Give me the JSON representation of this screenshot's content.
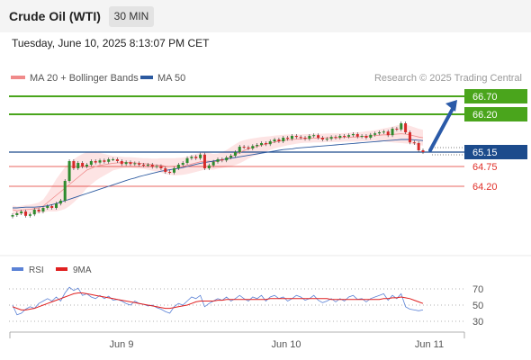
{
  "header": {
    "instrument": "Crude Oil (WTI)",
    "timeframe": "30 MIN"
  },
  "timestamp": "Tuesday, June 10, 2025 8:13:07 PM CET",
  "credit": "Research © 2025 Trading Central",
  "colors": {
    "resistance": "#4aa51c",
    "support": "#e0302a",
    "current": "#1c4b8c",
    "ma50": "#2c5aa0",
    "bollinger": "#f08a8a",
    "rsi": "#5b82d6",
    "rsi_ma": "#e02020",
    "arrow": "#2a5aa8",
    "candle_up": "#2e8b2e",
    "candle_down": "#d62a2a"
  },
  "chart_data": [
    {
      "type": "candlestick",
      "legend": [
        {
          "name": "MA 20 + Bollinger Bands",
          "color": "#f08a8a"
        },
        {
          "name": "MA 50",
          "color": "#2c5aa0"
        }
      ],
      "x_ticks": [
        "Jun 9",
        "Jun 10",
        "Jun 11"
      ],
      "y_range": [
        63.2,
        67.2
      ],
      "levels": [
        {
          "value": 66.7,
          "label": "66.70",
          "kind": "resistance"
        },
        {
          "value": 66.2,
          "label": "66.20",
          "kind": "resistance"
        },
        {
          "value": 65.15,
          "label": "65.15",
          "kind": "current"
        },
        {
          "value": 64.75,
          "label": "64.75",
          "kind": "support"
        },
        {
          "value": 64.2,
          "label": "64.20",
          "kind": "support"
        }
      ],
      "arrow": {
        "from": 65.2,
        "to": 66.6,
        "direction": "up"
      },
      "close": [
        63.4,
        63.45,
        63.5,
        63.38,
        63.42,
        63.55,
        63.5,
        63.6,
        63.65,
        63.6,
        63.72,
        63.8,
        64.35,
        64.9,
        64.7,
        64.85,
        64.75,
        64.8,
        64.9,
        64.86,
        64.92,
        64.88,
        64.95,
        64.95,
        64.9,
        64.82,
        64.87,
        64.82,
        64.84,
        64.8,
        64.78,
        64.8,
        64.74,
        64.76,
        64.7,
        64.6,
        64.58,
        64.7,
        64.8,
        64.85,
        64.98,
        65.02,
        64.98,
        65.08,
        64.7,
        64.78,
        64.88,
        64.95,
        64.92,
        65.0,
        65.05,
        65.15,
        65.3,
        65.28,
        65.25,
        65.32,
        65.35,
        65.4,
        65.37,
        65.45,
        65.5,
        65.45,
        65.55,
        65.52,
        65.6,
        65.57,
        65.55,
        65.52,
        65.6,
        65.62,
        65.55,
        65.5,
        65.52,
        65.57,
        65.55,
        65.6,
        65.58,
        65.62,
        65.65,
        65.58,
        65.6,
        65.55,
        65.63,
        65.67,
        65.7,
        65.72,
        65.62,
        65.8,
        65.78,
        65.95,
        65.7,
        65.42,
        65.4,
        65.2,
        65.15
      ],
      "ma20": [
        63.55,
        63.52,
        63.54,
        63.55,
        63.56,
        63.58,
        63.6,
        63.65,
        63.75,
        63.85,
        63.95,
        64.05,
        64.15,
        64.25,
        64.35,
        64.45,
        64.55,
        64.65,
        64.7,
        64.75,
        64.78,
        64.8,
        64.82,
        64.84,
        64.85,
        64.86,
        64.86,
        64.86,
        64.85,
        64.84,
        64.83,
        64.82,
        64.8,
        64.79,
        64.78,
        64.76,
        64.75,
        64.74,
        64.75,
        64.76,
        64.78,
        64.82,
        64.85,
        64.88,
        64.9,
        64.9,
        64.88,
        64.9,
        64.93,
        64.97,
        65.02,
        65.08,
        65.14,
        65.19,
        65.24,
        65.28,
        65.31,
        65.34,
        65.37,
        65.4,
        65.43,
        65.45,
        65.47,
        65.49,
        65.5,
        65.51,
        65.52,
        65.53,
        65.53,
        65.54,
        65.54,
        65.54,
        65.55,
        65.55,
        65.55,
        65.55,
        65.56,
        65.56,
        65.57,
        65.57,
        65.58,
        65.59,
        65.6,
        65.61,
        65.62,
        65.63,
        65.63,
        65.64,
        65.65,
        65.66,
        65.65,
        65.63,
        65.6,
        65.57,
        65.55
      ],
      "ma50": [
        63.6,
        63.6,
        63.61,
        63.62,
        63.62,
        63.62,
        63.63,
        63.64,
        63.66,
        63.69,
        63.72,
        63.76,
        63.8,
        63.84,
        63.88,
        63.92,
        63.96,
        64.0,
        64.04,
        64.08,
        64.12,
        64.16,
        64.2,
        64.24,
        64.28,
        64.32,
        64.36,
        64.4,
        64.43,
        64.47,
        64.5,
        64.53,
        64.56,
        64.59,
        64.62,
        64.64,
        64.66,
        64.68,
        64.7,
        64.72,
        64.75,
        64.78,
        64.81,
        64.84,
        64.86,
        64.88,
        64.9,
        64.92,
        64.94,
        64.96,
        64.98,
        65.0,
        65.02,
        65.04,
        65.06,
        65.08,
        65.1,
        65.12,
        65.14,
        65.16,
        65.18,
        65.2,
        65.22,
        65.23,
        65.24,
        65.26,
        65.27,
        65.28,
        65.29,
        65.3,
        65.31,
        65.32,
        65.33,
        65.34,
        65.35,
        65.36,
        65.37,
        65.38,
        65.39,
        65.4,
        65.41,
        65.42,
        65.43,
        65.44,
        65.45,
        65.46,
        65.47,
        65.48,
        65.49,
        65.5,
        65.5,
        65.5,
        65.49,
        65.48,
        65.47
      ],
      "bb_width": [
        0.12,
        0.12,
        0.12,
        0.13,
        0.13,
        0.14,
        0.15,
        0.18,
        0.25,
        0.35,
        0.45,
        0.52,
        0.58,
        0.6,
        0.6,
        0.58,
        0.55,
        0.5,
        0.45,
        0.4,
        0.35,
        0.3,
        0.25,
        0.2,
        0.18,
        0.16,
        0.15,
        0.15,
        0.15,
        0.15,
        0.15,
        0.16,
        0.17,
        0.18,
        0.2,
        0.22,
        0.23,
        0.24,
        0.24,
        0.24,
        0.24,
        0.25,
        0.25,
        0.25,
        0.24,
        0.23,
        0.22,
        0.21,
        0.22,
        0.24,
        0.27,
        0.29,
        0.3,
        0.29,
        0.27,
        0.25,
        0.24,
        0.23,
        0.21,
        0.19,
        0.18,
        0.17,
        0.16,
        0.15,
        0.14,
        0.13,
        0.12,
        0.12,
        0.12,
        0.12,
        0.12,
        0.12,
        0.12,
        0.12,
        0.12,
        0.12,
        0.12,
        0.12,
        0.13,
        0.13,
        0.13,
        0.14,
        0.14,
        0.15,
        0.16,
        0.18,
        0.2,
        0.22,
        0.24,
        0.26,
        0.26,
        0.25,
        0.24,
        0.23,
        0.22
      ]
    },
    {
      "type": "line",
      "legend": [
        {
          "name": "RSI",
          "color": "#5b82d6"
        },
        {
          "name": "9MA",
          "color": "#e02020"
        }
      ],
      "y_ticks": [
        70,
        50,
        30
      ],
      "y_range": [
        25,
        80
      ],
      "rsi": [
        50,
        38,
        40,
        45,
        48,
        46,
        52,
        55,
        58,
        55,
        60,
        55,
        65,
        72,
        68,
        71,
        62,
        64,
        60,
        58,
        62,
        58,
        61,
        56,
        57,
        55,
        52,
        50,
        55,
        52,
        51,
        49,
        50,
        47,
        45,
        42,
        40,
        48,
        52,
        50,
        55,
        60,
        58,
        62,
        48,
        52,
        55,
        58,
        56,
        60,
        55,
        58,
        62,
        58,
        55,
        60,
        58,
        62,
        55,
        60,
        62,
        58,
        60,
        55,
        58,
        62,
        60,
        56,
        58,
        62,
        56,
        53,
        55,
        58,
        54,
        58,
        55,
        60,
        62,
        57,
        58,
        54,
        58,
        60,
        62,
        64,
        56,
        62,
        58,
        64,
        48,
        45,
        44,
        43,
        44
      ],
      "rsi_ma": [
        48,
        46,
        44,
        44,
        45,
        46,
        48,
        50,
        52,
        54,
        56,
        58,
        60,
        62,
        64,
        65,
        65,
        64,
        63,
        62,
        61,
        60,
        59,
        58,
        57,
        56,
        55,
        54,
        53,
        52,
        51,
        50,
        49,
        48,
        47,
        46,
        46,
        47,
        48,
        49,
        50,
        52,
        54,
        55,
        55,
        55,
        55,
        56,
        56,
        57,
        57,
        57,
        57,
        57,
        57,
        57,
        57,
        57,
        57,
        58,
        58,
        58,
        58,
        58,
        58,
        58,
        58,
        58,
        58,
        58,
        58,
        58,
        58,
        57,
        57,
        57,
        57,
        57,
        57,
        57,
        57,
        57,
        57,
        57,
        57,
        58,
        58,
        59,
        59,
        60,
        59,
        58,
        56,
        54,
        52
      ]
    }
  ]
}
